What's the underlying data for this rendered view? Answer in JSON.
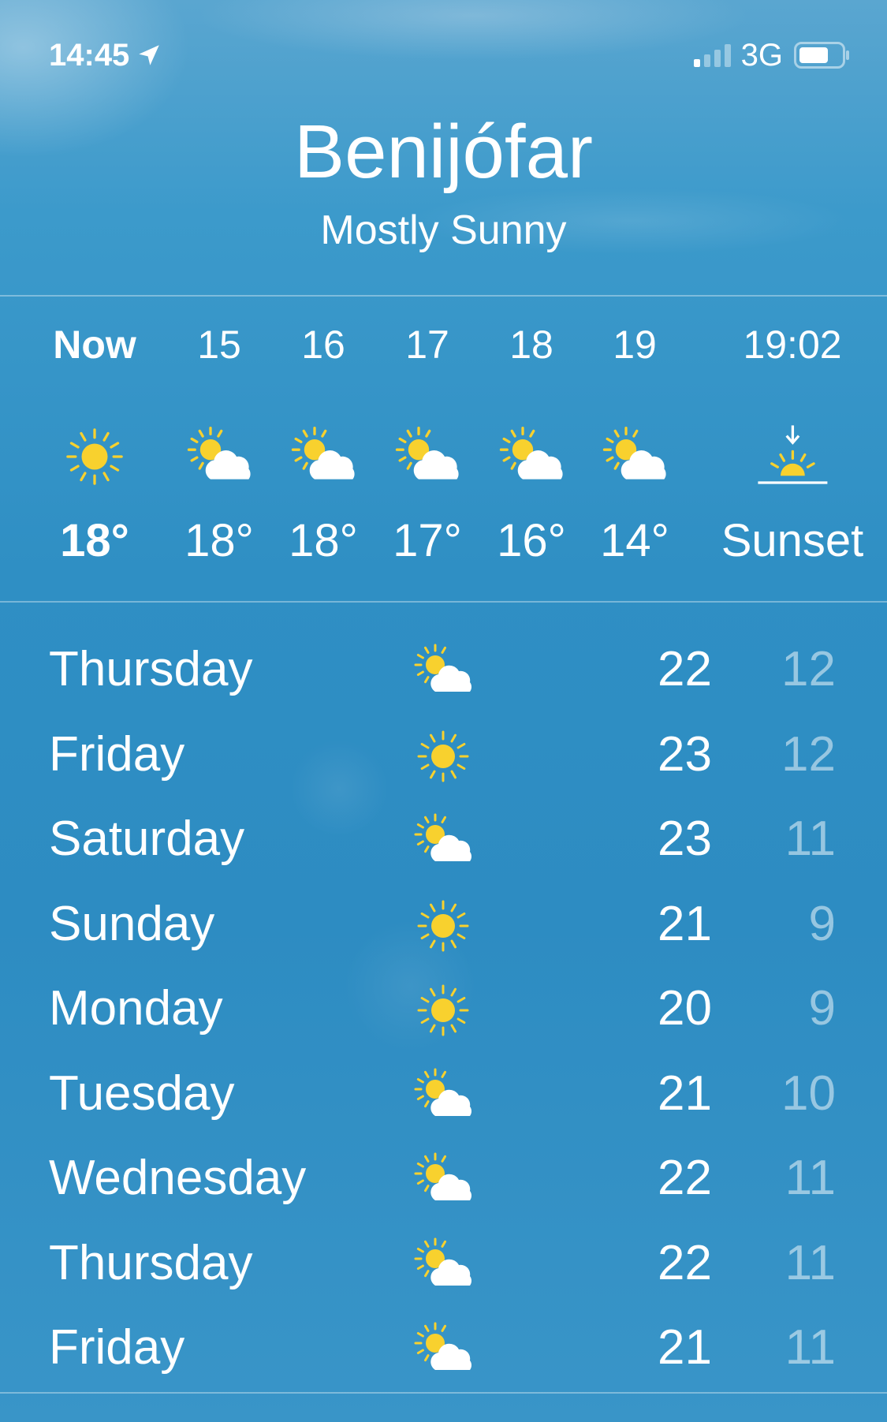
{
  "status_bar": {
    "time": "14:45",
    "network": "3G",
    "icons": [
      "location-arrow-icon",
      "signal-icon",
      "battery-icon"
    ]
  },
  "header": {
    "city": "Benijófar",
    "condition": "Mostly Sunny"
  },
  "colors": {
    "sun": "#f8d12e",
    "background": "#2f8fc4"
  },
  "hourly": [
    {
      "label": "Now",
      "icon": "sun",
      "temp": "18°"
    },
    {
      "label": "15",
      "icon": "partly-cloudy",
      "temp": "18°"
    },
    {
      "label": "16",
      "icon": "partly-cloudy",
      "temp": "18°"
    },
    {
      "label": "17",
      "icon": "partly-cloudy",
      "temp": "17°"
    },
    {
      "label": "18",
      "icon": "partly-cloudy",
      "temp": "16°"
    },
    {
      "label": "19",
      "icon": "partly-cloudy",
      "temp": "14°"
    },
    {
      "label": "19:02",
      "icon": "sunset",
      "temp": "Sunset"
    }
  ],
  "daily": [
    {
      "day": "Thursday",
      "icon": "partly-cloudy",
      "high": "22",
      "low": "12"
    },
    {
      "day": "Friday",
      "icon": "sun",
      "high": "23",
      "low": "12"
    },
    {
      "day": "Saturday",
      "icon": "partly-cloudy",
      "high": "23",
      "low": "11"
    },
    {
      "day": "Sunday",
      "icon": "sun",
      "high": "21",
      "low": "9"
    },
    {
      "day": "Monday",
      "icon": "sun",
      "high": "20",
      "low": "9"
    },
    {
      "day": "Tuesday",
      "icon": "partly-cloudy",
      "high": "21",
      "low": "10"
    },
    {
      "day": "Wednesday",
      "icon": "partly-cloudy",
      "high": "22",
      "low": "11"
    },
    {
      "day": "Thursday",
      "icon": "partly-cloudy",
      "high": "22",
      "low": "11"
    },
    {
      "day": "Friday",
      "icon": "partly-cloudy",
      "high": "21",
      "low": "11"
    }
  ]
}
